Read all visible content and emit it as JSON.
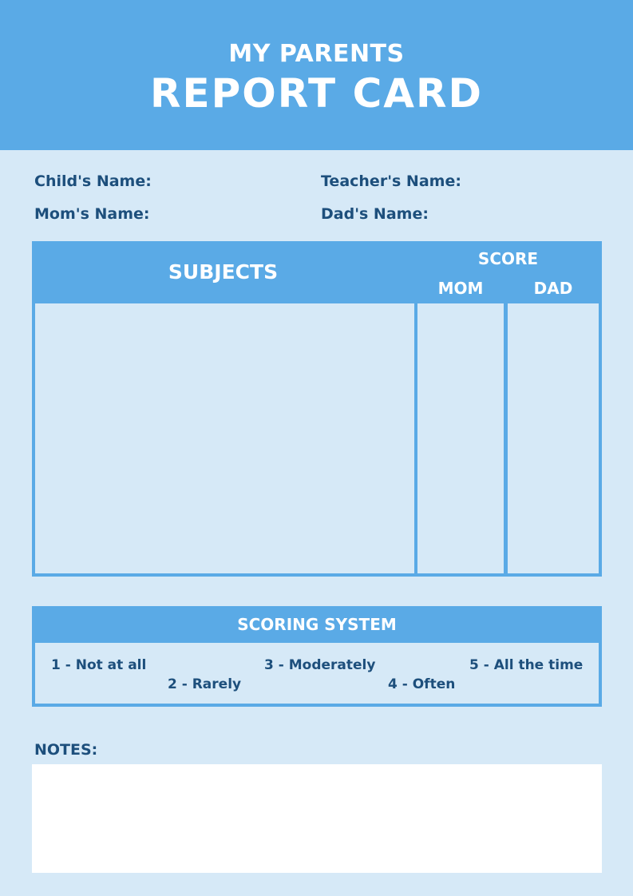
{
  "header": {
    "subtitle": "MY PARENTS",
    "title": "REPORT CARD"
  },
  "fields": {
    "child": "Child's Name:",
    "teacher": "Teacher's Name:",
    "mom": "Mom's Name:",
    "dad": "Dad's Name:"
  },
  "table": {
    "subjects": "SUBJECTS",
    "score": "SCORE",
    "mom": "MOM",
    "dad": "DAD"
  },
  "scoring": {
    "title": "SCORING SYSTEM",
    "items": [
      "1 - Not at all",
      "2 - Rarely",
      "3 - Moderately",
      "4 - Often",
      "5 - All the time"
    ]
  },
  "notes": {
    "label": "NOTES:"
  },
  "colors": {
    "accent": "#5aaae6",
    "background": "#d6e9f7",
    "text": "#1d4f7c"
  }
}
